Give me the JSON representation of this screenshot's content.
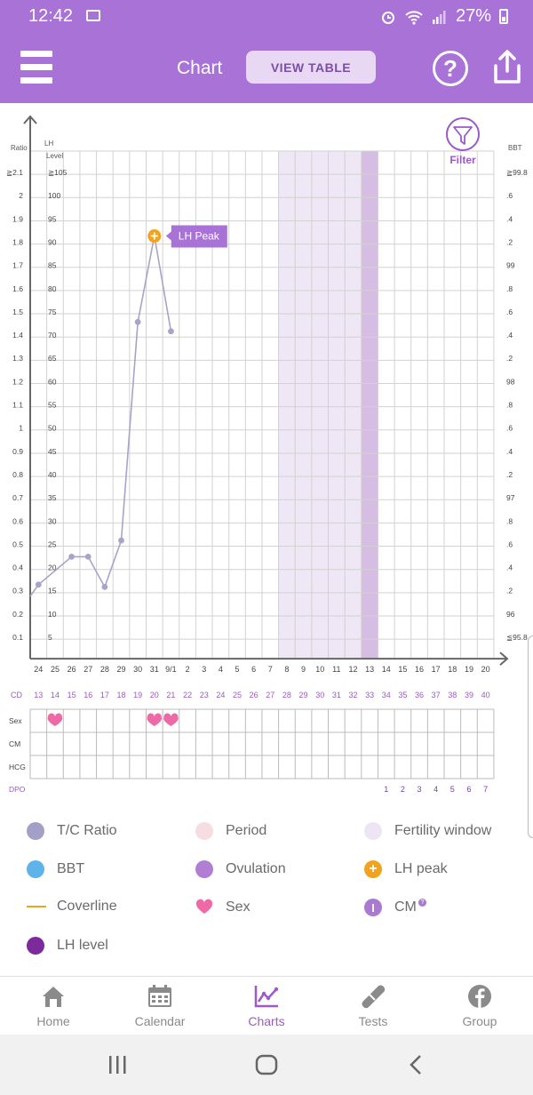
{
  "status": {
    "time": "12:42",
    "battery": "27%"
  },
  "header": {
    "title": "Chart",
    "view_table_label": "VIEW TABLE",
    "help_symbol": "?"
  },
  "chart": {
    "left_axis_title": "Ratio",
    "lh_axis_title_line1": "LH",
    "lh_axis_title_line2": "Level",
    "right_axis_title": "BBT",
    "filter_label": "Filter",
    "ratio_ticks": [
      "≧2.1",
      "2",
      "1.9",
      "1.8",
      "1.7",
      "1.6",
      "1.5",
      "1.4",
      "1.3",
      "1.2",
      "1.1",
      "1",
      "0.9",
      "0.8",
      "0.7",
      "0.6",
      "0.5",
      "0.4",
      "0.3",
      "0.2",
      "0.1"
    ],
    "lh_ticks": [
      "≧105",
      "100",
      "95",
      "90",
      "85",
      "80",
      "75",
      "70",
      "65",
      "60",
      "55",
      "50",
      "45",
      "40",
      "35",
      "30",
      "25",
      "20",
      "15",
      "10",
      "5"
    ],
    "bbt_ticks": [
      "≧99.8",
      ".6",
      ".4",
      ".2",
      "99",
      ".8",
      ".6",
      ".4",
      ".2",
      "98",
      ".8",
      ".6",
      ".4",
      ".2",
      "97",
      ".8",
      ".6",
      ".4",
      ".2",
      "96",
      "≦95.8"
    ],
    "date_labels": [
      "24",
      "25",
      "26",
      "27",
      "28",
      "29",
      "30",
      "31",
      "9/1",
      "2",
      "3",
      "4",
      "5",
      "6",
      "7",
      "8",
      "9",
      "10",
      "11",
      "12",
      "13",
      "14",
      "15",
      "16",
      "17",
      "18",
      "19",
      "20"
    ],
    "cd_label": "CD",
    "cd_values": [
      "13",
      "14",
      "15",
      "16",
      "17",
      "18",
      "19",
      "20",
      "21",
      "22",
      "23",
      "24",
      "25",
      "26",
      "27",
      "28",
      "29",
      "30",
      "31",
      "32",
      "33",
      "34",
      "35",
      "36",
      "37",
      "38",
      "39",
      "40"
    ],
    "row_labels": [
      "Sex",
      "CM",
      "HCG"
    ],
    "dpo_label": "DPO",
    "dpo_values": [
      "1",
      "2",
      "3",
      "4",
      "5",
      "6",
      "7"
    ],
    "lh_peak_label": "LH Peak"
  },
  "chart_data": {
    "type": "line",
    "title": "",
    "categories": [
      "24",
      "25",
      "26",
      "27",
      "28",
      "29",
      "30",
      "31",
      "9/1",
      "2",
      "3",
      "4",
      "5",
      "6",
      "7",
      "8",
      "9",
      "10",
      "11",
      "12",
      "13",
      "14",
      "15",
      "16",
      "17",
      "18",
      "19",
      "20"
    ],
    "ylim": [
      0,
      2.1
    ],
    "series": [
      {
        "name": "T/C Ratio",
        "x": [
          "24",
          "26",
          "27",
          "28",
          "29",
          "30",
          "31",
          "9/1"
        ],
        "values": [
          0.25,
          0.37,
          0.37,
          0.24,
          0.44,
          1.38,
          1.75,
          1.34
        ]
      }
    ],
    "lh_peak": {
      "x": "31",
      "value": 1.75
    },
    "fertility_window": [
      "8",
      "9",
      "10",
      "11",
      "12",
      "13"
    ],
    "ovulation": "13",
    "sex_days": [
      "25",
      "31",
      "9/1"
    ],
    "colors": {
      "ratio": "#a9a3c9",
      "fertility": "#efe6f6",
      "ovulation": "#d6bde3",
      "lh_peak": "#f0a31f",
      "sex": "#ee6aa7",
      "accent": "#a972d6"
    }
  },
  "legend": {
    "items": [
      {
        "label": "T/C Ratio",
        "icon": "tc-ratio-dot",
        "color": "#a3a0c8"
      },
      {
        "label": "Period",
        "icon": "period-dot",
        "color": "#f5dde1"
      },
      {
        "label": "Fertility window",
        "icon": "fertility-dot",
        "color": "#efe4f3"
      },
      {
        "label": "BBT",
        "icon": "bbt-dot",
        "color": "#5eb4ea"
      },
      {
        "label": "Ovulation",
        "icon": "ovulation-dot",
        "color": "#b07fd3"
      },
      {
        "label": "LH peak",
        "icon": "lh-peak-plus",
        "color": "#f0a31f"
      },
      {
        "label": "Coverline",
        "icon": "coverline-dash",
        "color": "#f0a31f"
      },
      {
        "label": "Sex",
        "icon": "heart-icon",
        "color": "#ee6aa7"
      },
      {
        "label": "CM",
        "icon": "cm-icon",
        "color": "#a97ad0"
      },
      {
        "label": "LH level",
        "icon": "lh-level-dot",
        "color": "#7d2a9c"
      }
    ]
  },
  "nav": {
    "items": [
      {
        "label": "Home",
        "icon": "home-icon"
      },
      {
        "label": "Calendar",
        "icon": "calendar-icon"
      },
      {
        "label": "Charts",
        "icon": "charts-icon"
      },
      {
        "label": "Tests",
        "icon": "tests-icon"
      },
      {
        "label": "Group",
        "icon": "facebook-icon"
      }
    ]
  }
}
